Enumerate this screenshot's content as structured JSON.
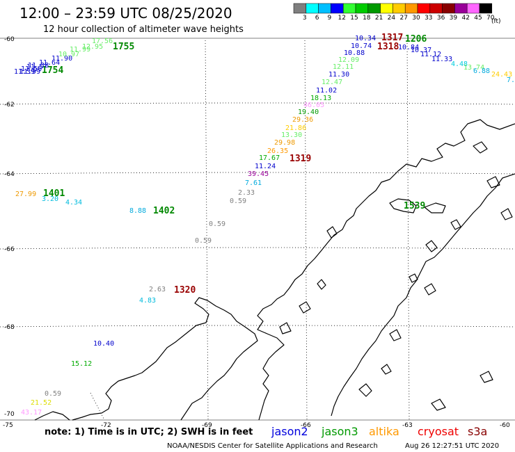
{
  "header": {
    "title": "12:00 – 23:59 UTC 08/25/2020",
    "subtitle": "12 hour collection of altimeter wave heights"
  },
  "legend": {
    "unit": "(ft)",
    "bins": [
      {
        "label": "3",
        "color": "#7f7f7f"
      },
      {
        "label": "6",
        "color": "#00ffff"
      },
      {
        "label": "9",
        "color": "#00bfff"
      },
      {
        "label": "12",
        "color": "#0000ff"
      },
      {
        "label": "15",
        "color": "#33ff33"
      },
      {
        "label": "18",
        "color": "#00cc00"
      },
      {
        "label": "21",
        "color": "#009900"
      },
      {
        "label": "24",
        "color": "#ffff00"
      },
      {
        "label": "27",
        "color": "#ffcc00"
      },
      {
        "label": "30",
        "color": "#ff9900"
      },
      {
        "label": "33",
        "color": "#ff0000"
      },
      {
        "label": "36",
        "color": "#cc0000"
      },
      {
        "label": "39",
        "color": "#880000"
      },
      {
        "label": "42",
        "color": "#990099"
      },
      {
        "label": "45",
        "color": "#ff66ff"
      },
      {
        "label": "70",
        "color": "#000000"
      }
    ]
  },
  "axes": {
    "lat_labels": [
      "-60",
      "-62",
      "-64",
      "-66",
      "-68",
      "-70"
    ],
    "lon_labels": [
      "-75",
      "-72",
      "-69",
      "-66",
      "-63",
      "-60"
    ]
  },
  "footer": {
    "note": "note:  1) Time is in UTC; 2) SWH is in feet",
    "credit": "NOAA/NESDIS Center for Satellite Applications and Research",
    "timestamp": "Aug 26 12:27:51 UTC 2020",
    "satellites": [
      {
        "name": "jason2",
        "color": "#0000dd"
      },
      {
        "name": "jason3",
        "color": "#009900"
      },
      {
        "name": "altika",
        "color": "#ff9900"
      },
      {
        "name": "cryosat",
        "color": "#ee0000"
      },
      {
        "name": "s3a",
        "color": "#880000"
      }
    ]
  },
  "observations": [
    {
      "text": "27.99",
      "color": "#ee9900"
    },
    {
      "text": "1401",
      "color": "#008800",
      "bold": true
    },
    {
      "text": "3.20",
      "color": "#00bbdd"
    },
    {
      "text": "4.34",
      "color": "#00bbdd"
    },
    {
      "text": "8.88",
      "color": "#00aadd"
    },
    {
      "text": "1402",
      "color": "#008800",
      "bold": true
    },
    {
      "text": "0.59",
      "color": "#808080"
    },
    {
      "text": "0.59",
      "color": "#808080"
    },
    {
      "text": "2.63",
      "color": "#808080"
    },
    {
      "text": "1320",
      "color": "#990000",
      "bold": true
    },
    {
      "text": "4.83",
      "color": "#00bbdd"
    },
    {
      "text": "10.40",
      "color": "#0000cc"
    },
    {
      "text": "15.12",
      "color": "#00aa00"
    },
    {
      "text": "0.59",
      "color": "#808080"
    },
    {
      "text": "21.52",
      "color": "#dddd00"
    },
    {
      "text": "43.17",
      "color": "#ff99ff"
    },
    {
      "text": "7.61",
      "color": "#00aadd"
    },
    {
      "text": "2.33",
      "color": "#808080"
    },
    {
      "text": "0.59",
      "color": "#808080"
    },
    {
      "text": "11.24",
      "color": "#0000cc"
    },
    {
      "text": "39.45",
      "color": "#990099"
    },
    {
      "text": "17.67",
      "color": "#00aa00"
    },
    {
      "text": "26.35",
      "color": "#ff9900"
    },
    {
      "text": "1319",
      "color": "#990000",
      "bold": true
    },
    {
      "text": "29.98",
      "color": "#ee9900"
    },
    {
      "text": "13.30",
      "color": "#66ee66"
    },
    {
      "text": "21.86",
      "color": "#ffcc00"
    },
    {
      "text": "29.36",
      "color": "#ee9900"
    },
    {
      "text": "19.40",
      "color": "#009900"
    },
    {
      "text": "46.05",
      "color": "#ff99ff"
    },
    {
      "text": "18.13",
      "color": "#00aa00"
    },
    {
      "text": "11.02",
      "color": "#0000cc"
    },
    {
      "text": "12.47",
      "color": "#66ee66"
    },
    {
      "text": "11.30",
      "color": "#0000cc"
    },
    {
      "text": "12.11",
      "color": "#66ee66"
    },
    {
      "text": "12.09",
      "color": "#66ee66"
    },
    {
      "text": "10.88",
      "color": "#0000cc"
    },
    {
      "text": "10.74",
      "color": "#0000cc"
    },
    {
      "text": "10.34",
      "color": "#0000cc"
    },
    {
      "text": "1317",
      "color": "#990000",
      "bold": true
    },
    {
      "text": "1206",
      "color": "#008800",
      "bold": true
    },
    {
      "text": "1318",
      "color": "#990000",
      "bold": true
    },
    {
      "text": "10.84",
      "color": "#0000cc"
    },
    {
      "text": "10.37",
      "color": "#0000cc"
    },
    {
      "text": "11.12",
      "color": "#0000cc"
    },
    {
      "text": "11.33",
      "color": "#0000cc"
    },
    {
      "text": "4.48",
      "color": "#00ccdd"
    },
    {
      "text": "13.74",
      "color": "#66ee66"
    },
    {
      "text": "6.88",
      "color": "#00aadd"
    },
    {
      "text": "24.43",
      "color": "#ffcc00"
    },
    {
      "text": "7.85",
      "color": "#00aadd"
    },
    {
      "text": "1539",
      "color": "#008800",
      "bold": true
    },
    {
      "text": "17.56",
      "color": "#66ee66"
    },
    {
      "text": "1755",
      "color": "#008800",
      "bold": true
    },
    {
      "text": "11.90",
      "color": "#0000cc"
    },
    {
      "text": "11.64",
      "color": "#0000cc"
    },
    {
      "text": "11.57",
      "color": "#0000cc"
    },
    {
      "text": "11.99",
      "color": "#0000cc"
    },
    {
      "text": "1754",
      "color": "#008800",
      "bold": true
    },
    {
      "text": "11.39",
      "color": "#0000cc"
    },
    {
      "text": "11.56",
      "color": "#0000cc"
    },
    {
      "text": "11.38",
      "color": "#0000cc"
    },
    {
      "text": "10.97",
      "color": "#66ee66"
    },
    {
      "text": "11.99",
      "color": "#66ee66"
    },
    {
      "text": "12.95",
      "color": "#66ee66"
    }
  ]
}
